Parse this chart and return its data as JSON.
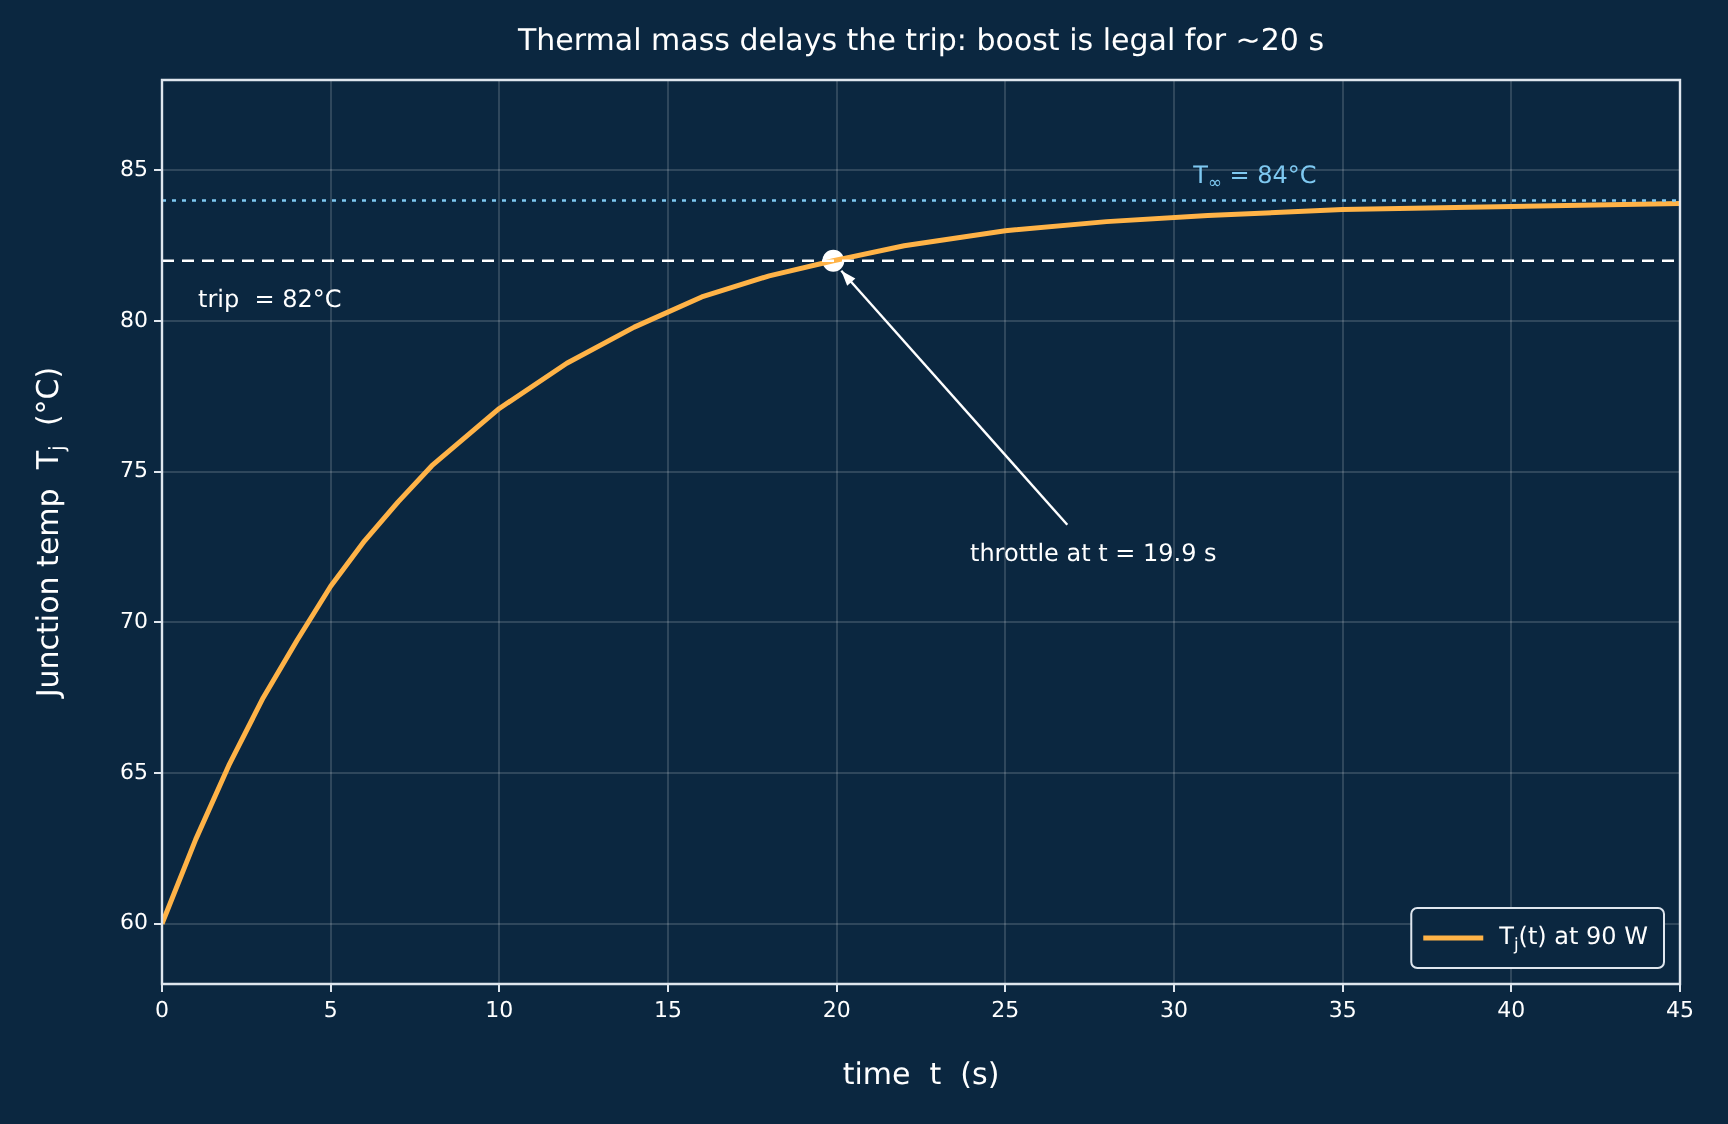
{
  "chart_data": {
    "type": "line",
    "title": "Thermal mass delays the trip: boost is legal for ~20 s",
    "xlabel": "time  t  (s)",
    "ylabel": "Junction temp  T$_{j}$  (°C)",
    "xlim": [
      0,
      45
    ],
    "xticks": [
      0,
      5,
      10,
      15,
      20,
      25,
      30,
      35,
      40,
      45
    ],
    "ylim": [
      58,
      88
    ],
    "yticks": [
      60,
      65,
      70,
      75,
      80,
      85
    ],
    "grid": true,
    "legend": "bottom right",
    "line_style": "solid",
    "series": [
      {
        "name": "T$_{j}$(t) at 90 W",
        "color": "#ffb347",
        "marker": "none",
        "x": [
          0,
          1,
          2,
          3,
          4,
          5,
          6,
          7,
          8,
          10,
          12,
          14,
          16,
          18,
          19.9,
          22,
          25,
          28,
          31,
          35,
          40,
          45
        ],
        "values": [
          60,
          62.8,
          65.3,
          67.5,
          69.4,
          71.2,
          72.7,
          74.0,
          75.2,
          77.1,
          78.6,
          79.8,
          80.8,
          81.5,
          82,
          82.5,
          83.0,
          83.3,
          83.5,
          83.7,
          83.8,
          83.9
        ]
      },
      {
        "type": "scatter",
        "color": "#ffffff",
        "marker": "circle",
        "x": [
          19.9
        ],
        "values": [
          82
        ]
      }
    ],
    "ref_lines": [
      {
        "axis": "y",
        "value": 82,
        "label": "trip  = 82°C",
        "color": "#ffffff",
        "line_style": "dashed"
      },
      {
        "axis": "y",
        "value": 84,
        "label": "T$_{∞}$ = 84°C",
        "color": "#7ec8f0",
        "line_style": "dotted"
      }
    ],
    "annotations": [
      {
        "text": "throttle at t = 19.9 s",
        "x": 19.9,
        "y": 82
      }
    ]
  }
}
